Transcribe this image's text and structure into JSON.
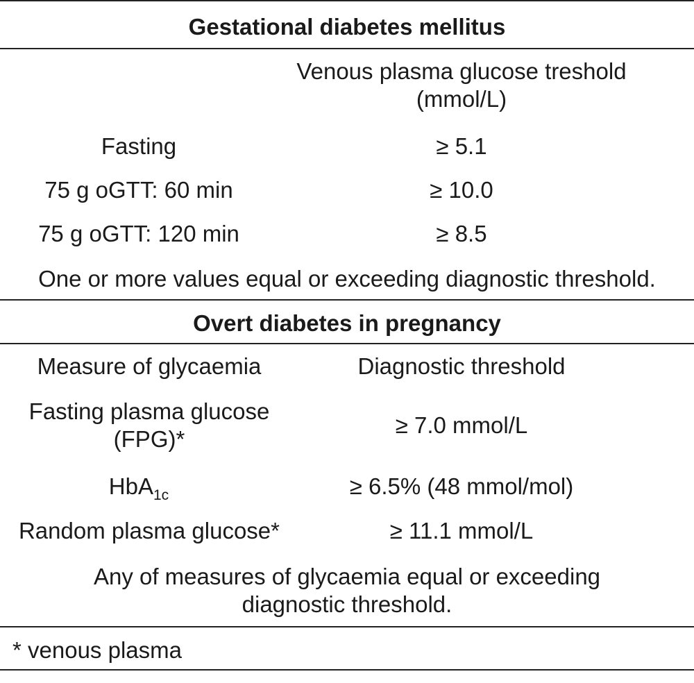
{
  "gdm": {
    "title": "Gestational diabetes mellitus",
    "col2_header": "Venous plasma glucose treshold (mmol/L)",
    "rows": [
      {
        "label": "Fasting",
        "value": "≥ 5.1"
      },
      {
        "label": "75 g oGTT: 60 min",
        "value": "≥ 10.0"
      },
      {
        "label": "75 g oGTT: 120 min",
        "value": "≥ 8.5"
      }
    ],
    "note": "One or more values equal or exceeding diagnostic threshold."
  },
  "overt": {
    "title": "Overt diabetes in pregnancy",
    "col1_header": "Measure of glycaemia",
    "col2_header": "Diagnostic threshold",
    "rows": [
      {
        "label": "Fasting plasma glucose (FPG)*",
        "value": "≥ 7.0 mmol/L"
      },
      {
        "label": "HbA",
        "label_sub": "1c",
        "value": "≥ 6.5% (48 mmol/mol)"
      },
      {
        "label": "Random plasma glucose*",
        "value": "≥ 11.1 mmol/L"
      }
    ],
    "note": "Any of measures of glycaemia equal or exceeding diagnostic threshold."
  },
  "footnote": "* venous plasma"
}
